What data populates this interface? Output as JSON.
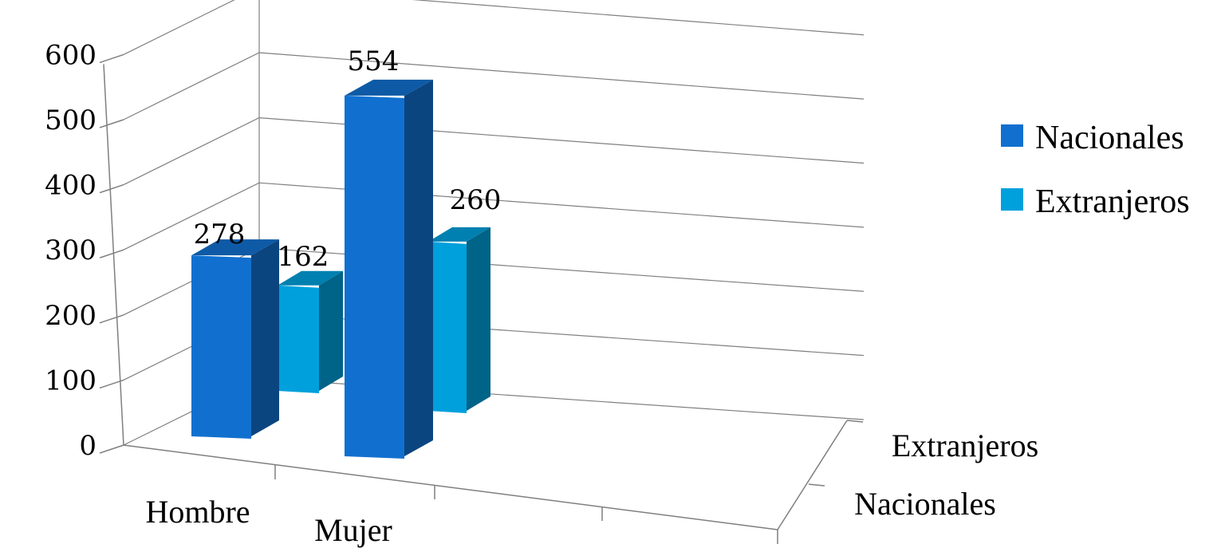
{
  "chart_data": {
    "type": "bar",
    "style": "3d-column",
    "categories": [
      "Hombre",
      "Mujer"
    ],
    "series": [
      {
        "name": "Nacionales",
        "values": [
          278,
          554
        ],
        "color": "#1170cf"
      },
      {
        "name": "Extranjeros",
        "values": [
          162,
          260
        ],
        "color": "#00a0dc"
      }
    ],
    "depth_labels": [
      "Extranjeros",
      "Nacionales"
    ],
    "ylim": [
      0,
      600
    ],
    "yticks": [
      "0",
      "100",
      "200",
      "300",
      "400",
      "500",
      "600"
    ],
    "grid": true,
    "legend_position": "right",
    "data_labels": true
  }
}
